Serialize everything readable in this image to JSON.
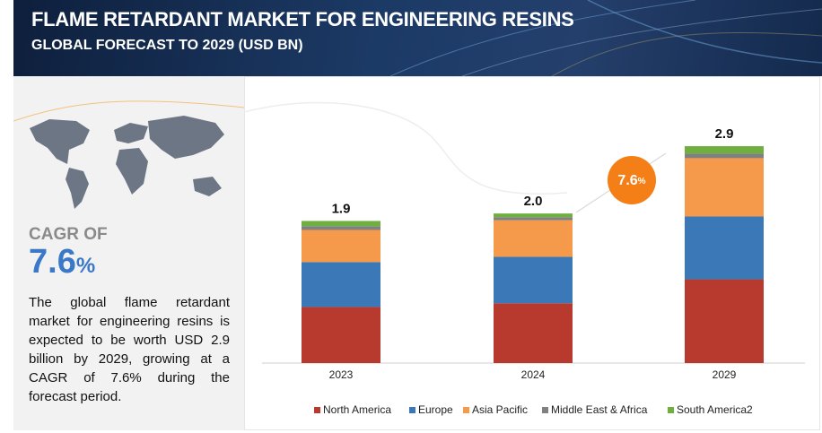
{
  "header": {
    "title": "FLAME RETARDANT MARKET FOR ENGINEERING RESINS",
    "subtitle": "GLOBAL FORECAST TO 2029 (USD BN)"
  },
  "summary": {
    "cagr_label": "CAGR OF",
    "cagr_value": "7.6",
    "cagr_unit": "%",
    "text": "The global flame retardant market for engineering resins is expected to be worth USD 2.9 billion by 2029, growing at a CAGR of 7.6% during the forecast period."
  },
  "chart_data": {
    "type": "stacked_bar",
    "categories": [
      "2023",
      "2024",
      "2029"
    ],
    "series": [
      {
        "name": "North America",
        "color": "#b83a2e",
        "values": [
          0.75,
          0.8,
          1.12
        ]
      },
      {
        "name": "Europe",
        "color": "#3a78b8",
        "values": [
          0.6,
          0.62,
          0.84
        ]
      },
      {
        "name": "Asia Pacific",
        "color": "#f59a4a",
        "values": [
          0.43,
          0.49,
          0.78
        ]
      },
      {
        "name": "Middle East & Africa",
        "color": "#808080",
        "values": [
          0.05,
          0.04,
          0.06
        ]
      },
      {
        "name": "South America2",
        "color": "#6fae3f",
        "values": [
          0.07,
          0.05,
          0.1
        ]
      }
    ],
    "totals": [
      1.9,
      2.0,
      2.9
    ],
    "total_labels": [
      "1.9",
      "2.0",
      "2.9"
    ],
    "annotation": {
      "value": "7.6",
      "unit": "%",
      "color": "#f57f17"
    },
    "ylim": [
      0,
      3.5
    ]
  }
}
